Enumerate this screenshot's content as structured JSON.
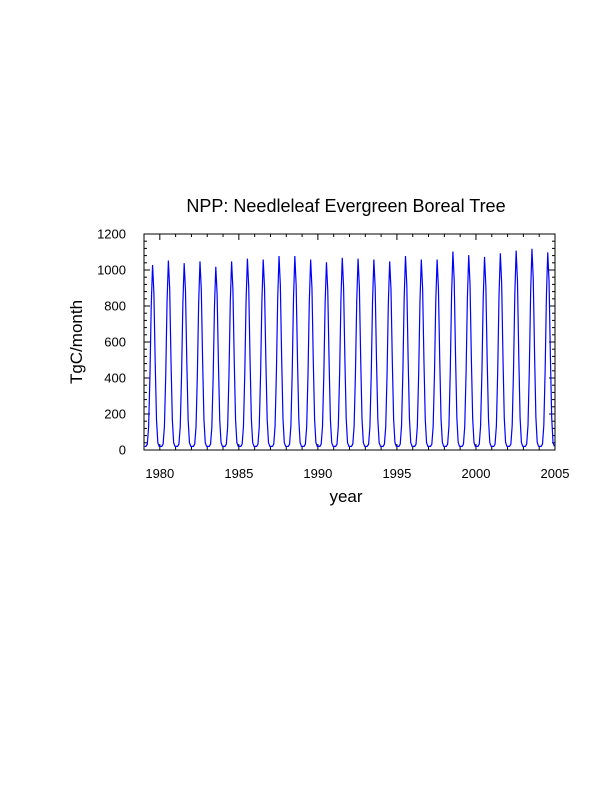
{
  "chart_data": {
    "type": "line",
    "title": "NPP: Needleleaf Evergreen Boreal Tree",
    "xlabel": "year",
    "ylabel": "TgC/month",
    "xlim": [
      1979,
      2005
    ],
    "ylim": [
      0,
      1200
    ],
    "x_ticks": [
      1980,
      1985,
      1990,
      1995,
      2000,
      2005
    ],
    "y_ticks": [
      0,
      200,
      400,
      600,
      800,
      1000,
      1200
    ],
    "grid": false,
    "series": [
      {
        "color": "#0000ff",
        "time_resolution": "monthly",
        "start_year": 1979,
        "end_year": 2004,
        "annual_min": 20,
        "peak_month_fraction": 0.55,
        "annual_peaks": [
          {
            "year": 1979,
            "peak": 1030
          },
          {
            "year": 1980,
            "peak": 1055
          },
          {
            "year": 1981,
            "peak": 1040
          },
          {
            "year": 1982,
            "peak": 1050
          },
          {
            "year": 1983,
            "peak": 1020
          },
          {
            "year": 1984,
            "peak": 1050
          },
          {
            "year": 1985,
            "peak": 1065
          },
          {
            "year": 1986,
            "peak": 1060
          },
          {
            "year": 1987,
            "peak": 1080
          },
          {
            "year": 1988,
            "peak": 1080
          },
          {
            "year": 1989,
            "peak": 1060
          },
          {
            "year": 1990,
            "peak": 1045
          },
          {
            "year": 1991,
            "peak": 1070
          },
          {
            "year": 1992,
            "peak": 1065
          },
          {
            "year": 1993,
            "peak": 1060
          },
          {
            "year": 1994,
            "peak": 1050
          },
          {
            "year": 1995,
            "peak": 1080
          },
          {
            "year": 1996,
            "peak": 1060
          },
          {
            "year": 1997,
            "peak": 1060
          },
          {
            "year": 1998,
            "peak": 1105
          },
          {
            "year": 1999,
            "peak": 1085
          },
          {
            "year": 2000,
            "peak": 1075
          },
          {
            "year": 2001,
            "peak": 1095
          },
          {
            "year": 2002,
            "peak": 1110
          },
          {
            "year": 2003,
            "peak": 1120
          },
          {
            "year": 2004,
            "peak": 1100
          }
        ]
      }
    ]
  }
}
